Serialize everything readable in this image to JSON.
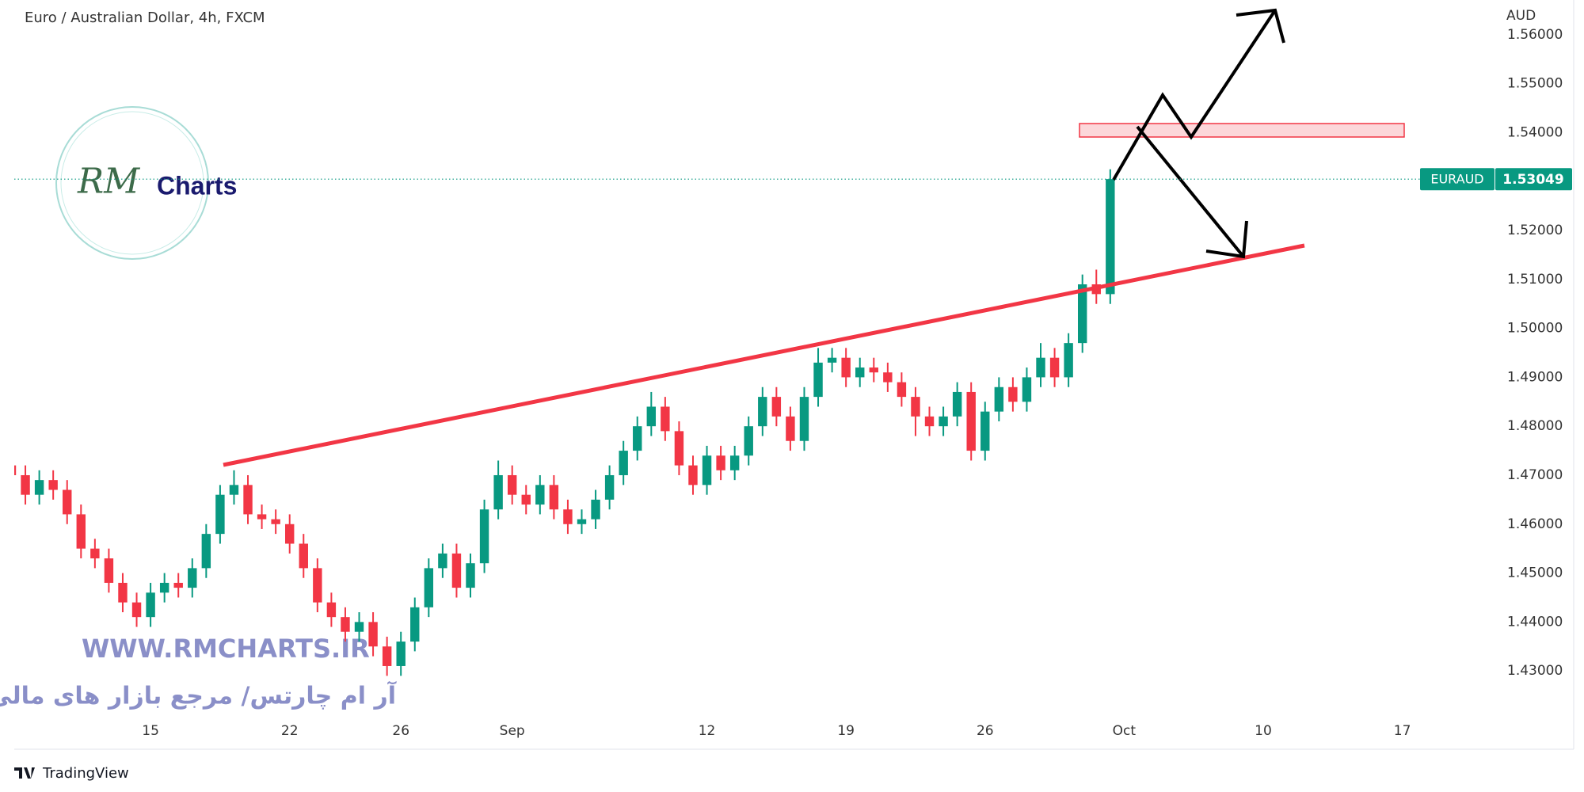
{
  "chart_data": {
    "type": "candlestick",
    "title": "Euro / Australian Dollar, 4h, FXCM",
    "currency": "AUD",
    "symbol": "EURAUD",
    "last_price": 1.53049,
    "up_color": "#089981",
    "down_color": "#f23645",
    "grid": false,
    "x": [
      -5,
      -4.5,
      -4,
      -3.5,
      -3,
      -2.5,
      -2,
      -1.5,
      -1,
      -0.5,
      0,
      0.5,
      1,
      1.5,
      2,
      2.5,
      3,
      3.5,
      4,
      4.5,
      5,
      5.5,
      6,
      6.5,
      7,
      7.5,
      8,
      8.5,
      9,
      9.5,
      10,
      10.5,
      11,
      11.5,
      12,
      12.5,
      13,
      13.5,
      14,
      14.5,
      15,
      15.5,
      16,
      16.5,
      17,
      17.5,
      18,
      18.5,
      19,
      19.5,
      20,
      20.5,
      21,
      21.5,
      22,
      22.5,
      23,
      23.5,
      24,
      24.5,
      25,
      25.5,
      26,
      26.5,
      27,
      27.5,
      28,
      28.5,
      29,
      29.5,
      30,
      30.5,
      31,
      31.5,
      32,
      32.5,
      33,
      33.5,
      34,
      34.5
    ],
    "open": [
      1.472,
      1.47,
      1.466,
      1.469,
      1.467,
      1.462,
      1.455,
      1.453,
      1.448,
      1.444,
      1.441,
      1.446,
      1.448,
      1.447,
      1.451,
      1.458,
      1.466,
      1.468,
      1.462,
      1.461,
      1.46,
      1.456,
      1.451,
      1.444,
      1.441,
      1.438,
      1.44,
      1.435,
      1.431,
      1.436,
      1.443,
      1.451,
      1.454,
      1.447,
      1.452,
      1.463,
      1.47,
      1.466,
      1.464,
      1.468,
      1.463,
      1.46,
      1.461,
      1.465,
      1.47,
      1.475,
      1.48,
      1.484,
      1.479,
      1.472,
      1.468,
      1.474,
      1.471,
      1.474,
      1.48,
      1.486,
      1.482,
      1.477,
      1.486,
      1.493,
      1.494,
      1.49,
      1.492,
      1.491,
      1.489,
      1.486,
      1.482,
      1.48,
      1.482,
      1.487,
      1.475,
      1.483,
      1.488,
      1.485,
      1.49,
      1.494,
      1.49,
      1.497,
      1.509,
      1.507
    ],
    "high": [
      1.474,
      1.472,
      1.471,
      1.471,
      1.469,
      1.464,
      1.457,
      1.455,
      1.45,
      1.446,
      1.448,
      1.45,
      1.45,
      1.453,
      1.46,
      1.468,
      1.471,
      1.47,
      1.464,
      1.463,
      1.462,
      1.458,
      1.453,
      1.446,
      1.443,
      1.442,
      1.442,
      1.437,
      1.438,
      1.445,
      1.453,
      1.456,
      1.456,
      1.454,
      1.465,
      1.473,
      1.472,
      1.468,
      1.47,
      1.47,
      1.465,
      1.463,
      1.467,
      1.472,
      1.477,
      1.482,
      1.487,
      1.486,
      1.481,
      1.474,
      1.476,
      1.476,
      1.476,
      1.482,
      1.488,
      1.488,
      1.484,
      1.488,
      1.496,
      1.496,
      1.496,
      1.494,
      1.494,
      1.493,
      1.491,
      1.488,
      1.484,
      1.484,
      1.489,
      1.489,
      1.485,
      1.49,
      1.49,
      1.492,
      1.497,
      1.496,
      1.499,
      1.511,
      1.512,
      1.5325
    ],
    "low": [
      1.468,
      1.464,
      1.464,
      1.465,
      1.46,
      1.453,
      1.451,
      1.446,
      1.442,
      1.439,
      1.439,
      1.444,
      1.445,
      1.445,
      1.449,
      1.456,
      1.464,
      1.46,
      1.459,
      1.458,
      1.454,
      1.449,
      1.442,
      1.439,
      1.436,
      1.436,
      1.433,
      1.429,
      1.429,
      1.434,
      1.441,
      1.449,
      1.445,
      1.445,
      1.45,
      1.461,
      1.464,
      1.462,
      1.462,
      1.461,
      1.458,
      1.458,
      1.459,
      1.463,
      1.468,
      1.473,
      1.478,
      1.477,
      1.47,
      1.466,
      1.466,
      1.469,
      1.469,
      1.472,
      1.478,
      1.48,
      1.475,
      1.475,
      1.484,
      1.491,
      1.488,
      1.488,
      1.489,
      1.487,
      1.484,
      1.478,
      1.478,
      1.478,
      1.48,
      1.473,
      1.473,
      1.481,
      1.483,
      1.483,
      1.488,
      1.488,
      1.488,
      1.495,
      1.505,
      1.505
    ],
    "close": [
      1.47,
      1.466,
      1.469,
      1.467,
      1.462,
      1.455,
      1.453,
      1.448,
      1.444,
      1.441,
      1.446,
      1.448,
      1.447,
      1.451,
      1.458,
      1.466,
      1.468,
      1.462,
      1.461,
      1.46,
      1.456,
      1.451,
      1.444,
      1.441,
      1.438,
      1.44,
      1.435,
      1.431,
      1.436,
      1.443,
      1.451,
      1.454,
      1.447,
      1.452,
      1.463,
      1.47,
      1.466,
      1.464,
      1.468,
      1.463,
      1.46,
      1.461,
      1.465,
      1.47,
      1.475,
      1.48,
      1.484,
      1.479,
      1.472,
      1.468,
      1.474,
      1.471,
      1.474,
      1.48,
      1.486,
      1.482,
      1.477,
      1.486,
      1.493,
      1.494,
      1.49,
      1.492,
      1.491,
      1.489,
      1.486,
      1.482,
      1.48,
      1.482,
      1.487,
      1.475,
      1.483,
      1.488,
      1.485,
      1.49,
      1.494,
      1.49,
      1.497,
      1.509,
      1.507,
      1.5305
    ],
    "xlim": [
      -4.9,
      48.2
    ],
    "xticks": [
      {
        "value": 0,
        "label": "15"
      },
      {
        "value": 5,
        "label": "22"
      },
      {
        "value": 9,
        "label": "26"
      },
      {
        "value": 13,
        "label": "Sep"
      },
      {
        "value": 20,
        "label": "12"
      },
      {
        "value": 25,
        "label": "19"
      },
      {
        "value": 30,
        "label": "26"
      },
      {
        "value": 35,
        "label": "Oct"
      },
      {
        "value": 40,
        "label": "10"
      },
      {
        "value": 45,
        "label": "17"
      }
    ],
    "ylim": [
      1.414,
      1.5671
    ],
    "yticks": [
      {
        "value": 1.43,
        "label": "1.43000"
      },
      {
        "value": 1.44,
        "label": "1.44000"
      },
      {
        "value": 1.45,
        "label": "1.45000"
      },
      {
        "value": 1.46,
        "label": "1.46000"
      },
      {
        "value": 1.47,
        "label": "1.47000"
      },
      {
        "value": 1.48,
        "label": "1.48000"
      },
      {
        "value": 1.49,
        "label": "1.49000"
      },
      {
        "value": 1.5,
        "label": "1.50000"
      },
      {
        "value": 1.51,
        "label": "1.51000"
      },
      {
        "value": 1.52,
        "label": "1.52000"
      },
      {
        "value": 1.53,
        "label": "1.53000"
      },
      {
        "value": 1.54,
        "label": "1.54000"
      },
      {
        "value": 1.55,
        "label": "1.55000"
      },
      {
        "value": 1.56,
        "label": "1.56000"
      }
    ]
  },
  "logo": {
    "initials": "RM",
    "text": "Charts"
  },
  "watermark": {
    "url": "WWW.RMCHARTS.IR",
    "tagline": "آر ام چارتس/ مرجع بازار های مالی"
  },
  "footer": {
    "brand": "TradingView"
  }
}
